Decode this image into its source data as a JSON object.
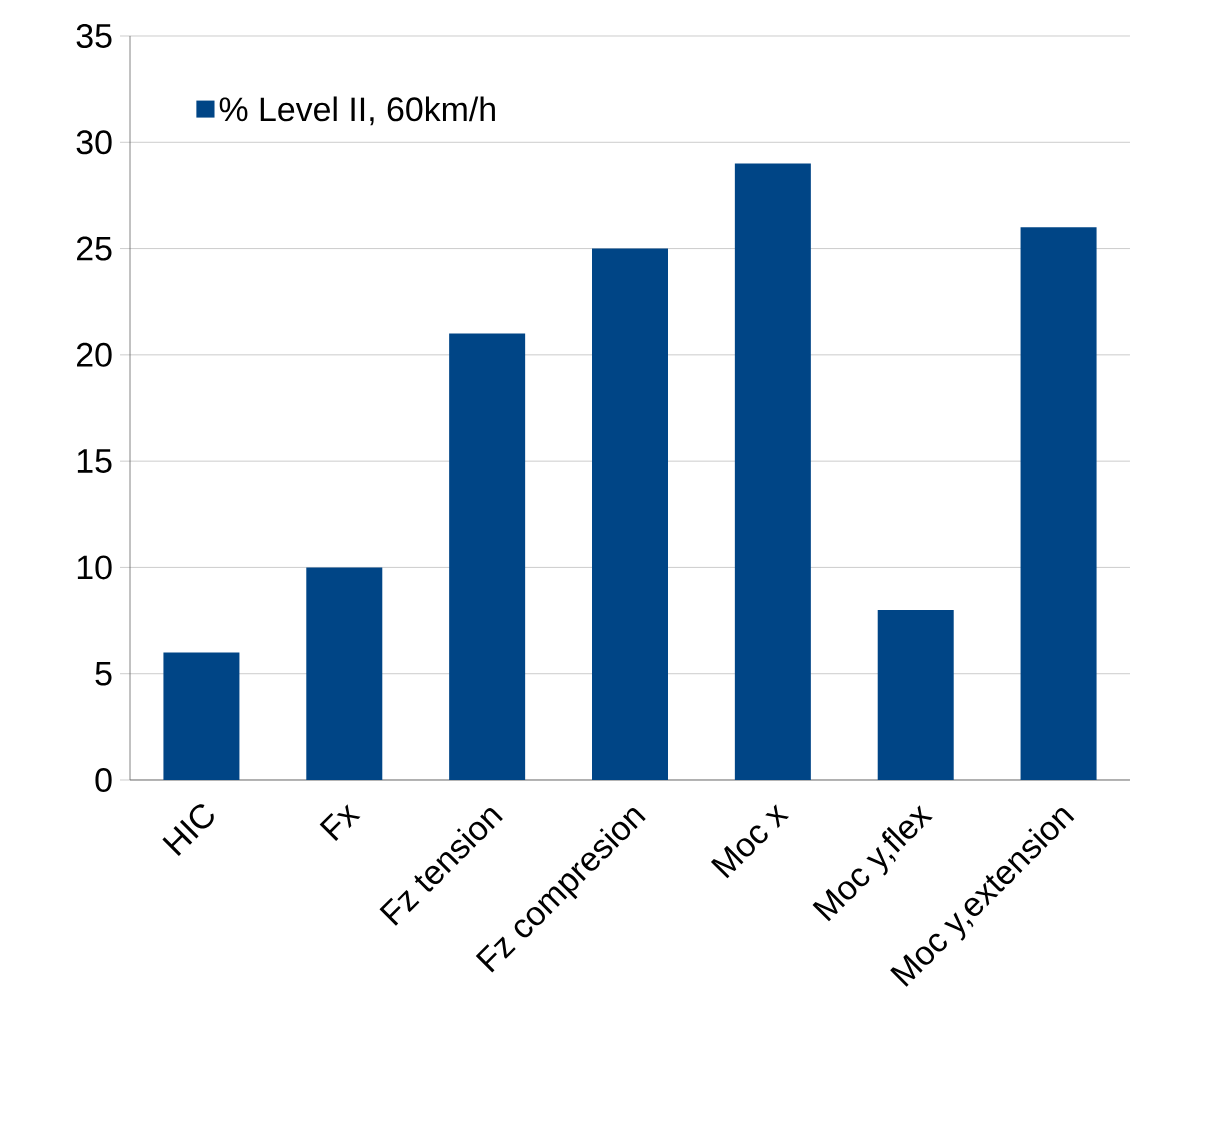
{
  "chart_data": {
    "type": "bar",
    "categories": [
      "HIC",
      "Fx",
      "Fz tension",
      "Fz compresion",
      "Moc x",
      "Moc y,flex",
      "Moc y,extension"
    ],
    "series": [
      {
        "name": "%  Level II, 60km/h",
        "color": "#004586",
        "values": [
          6,
          10,
          21,
          25,
          29,
          8,
          26
        ]
      }
    ],
    "ylim": [
      0,
      35
    ],
    "yticks": [
      0,
      5,
      10,
      15,
      20,
      25,
      30,
      35
    ],
    "grid": "y",
    "legend": "top left"
  }
}
